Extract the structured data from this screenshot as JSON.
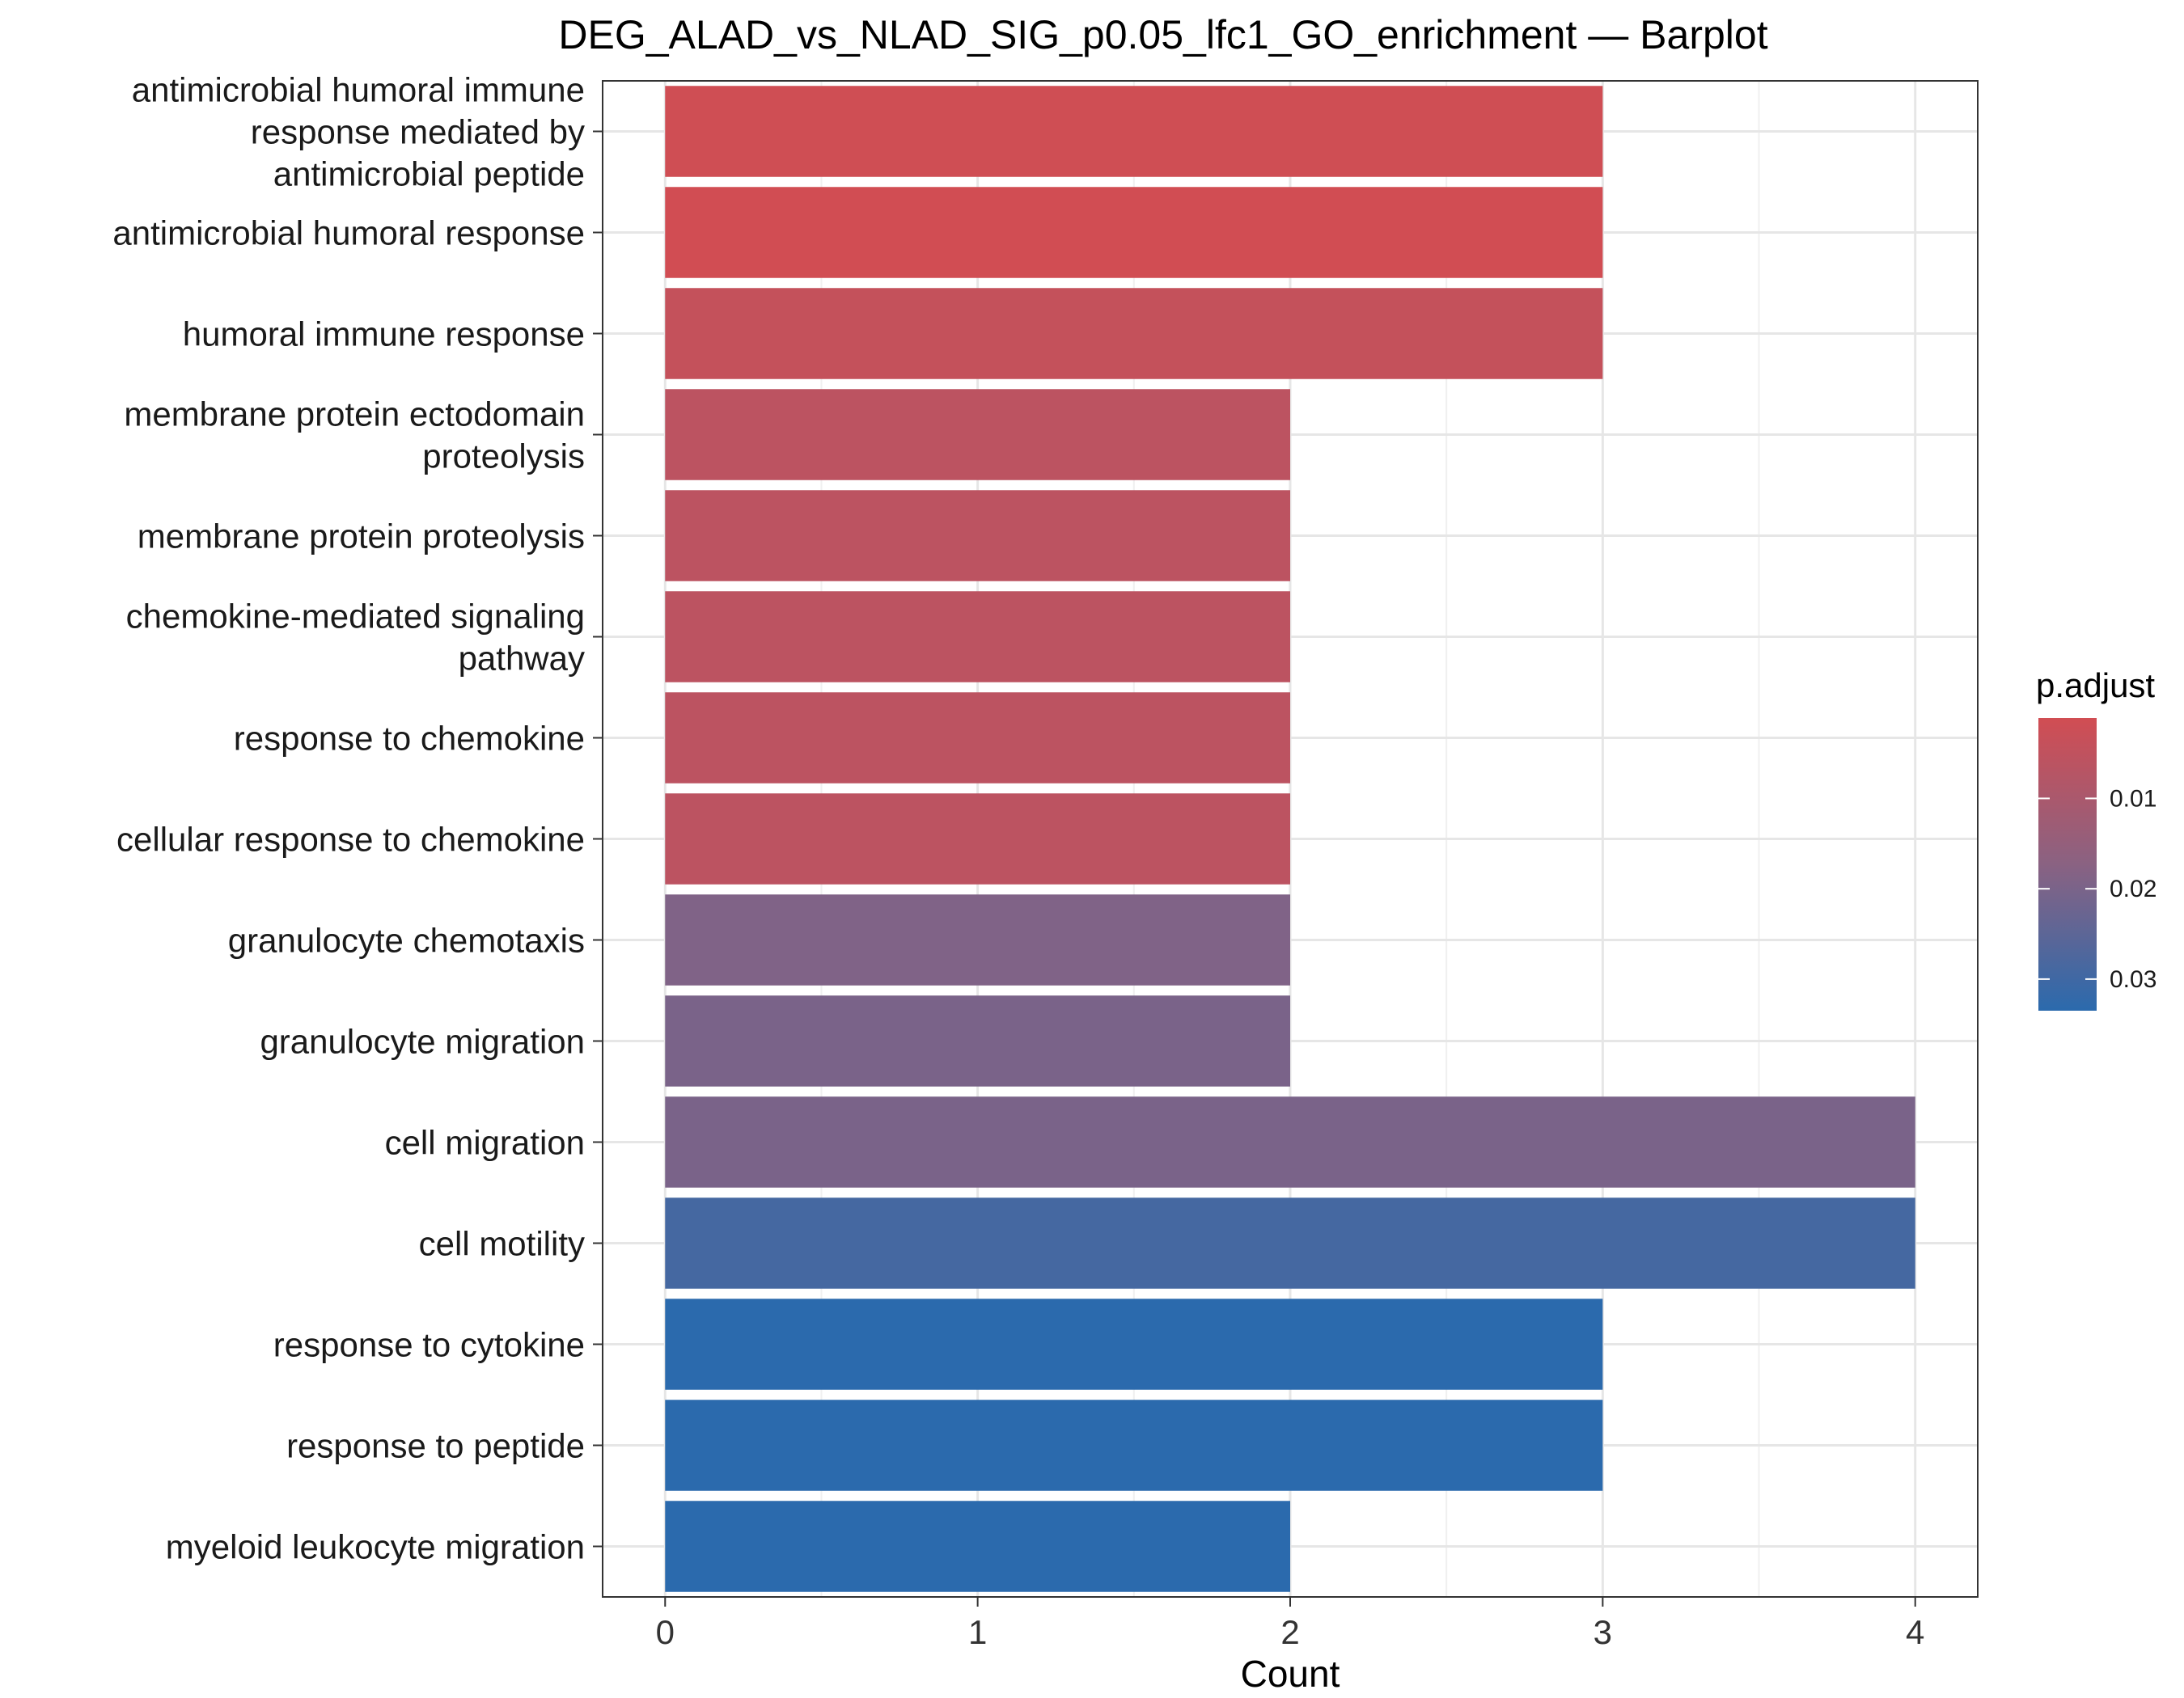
{
  "chart_data": {
    "type": "bar",
    "orientation": "horizontal",
    "title": "DEG_ALAD_vs_NLAD_SIG_p0.05_lfc1_GO_enrichment — Barplot",
    "xlabel": "Count",
    "ylabel": "",
    "xlim": [
      -0.2,
      4.2
    ],
    "x_ticks": [
      0,
      1,
      2,
      3,
      4
    ],
    "grid": true,
    "categories": [
      [
        "antimicrobial humoral immune",
        "response mediated by",
        "antimicrobial peptide"
      ],
      [
        "antimicrobial humoral response"
      ],
      [
        "humoral immune response"
      ],
      [
        "membrane protein ectodomain",
        "proteolysis"
      ],
      [
        "membrane protein proteolysis"
      ],
      [
        "chemokine-mediated signaling",
        "pathway"
      ],
      [
        "response to chemokine"
      ],
      [
        "cellular response to chemokine"
      ],
      [
        "granulocyte chemotaxis"
      ],
      [
        "granulocyte migration"
      ],
      [
        "cell migration"
      ],
      [
        "cell motility"
      ],
      [
        "response to cytokine"
      ],
      [
        "response to peptide"
      ],
      [
        "myeloid leukocyte migration"
      ]
    ],
    "values": [
      3,
      3,
      3,
      2,
      2,
      2,
      2,
      2,
      2,
      2,
      4,
      4,
      3,
      3,
      2
    ],
    "p_adjust": [
      0.0015,
      0.0012,
      0.004,
      0.006,
      0.006,
      0.006,
      0.006,
      0.006,
      0.019,
      0.02,
      0.02,
      0.029,
      0.034,
      0.034,
      0.034
    ],
    "legend": {
      "title": "p.adjust",
      "position": "right",
      "range": [
        0.0011,
        0.0335
      ],
      "ticks": [
        0.01,
        0.02,
        0.03
      ],
      "tick_labels": [
        "0.01",
        "0.02",
        "0.03"
      ],
      "color_low": "#d14d53",
      "color_high": "#2b6aad"
    }
  }
}
